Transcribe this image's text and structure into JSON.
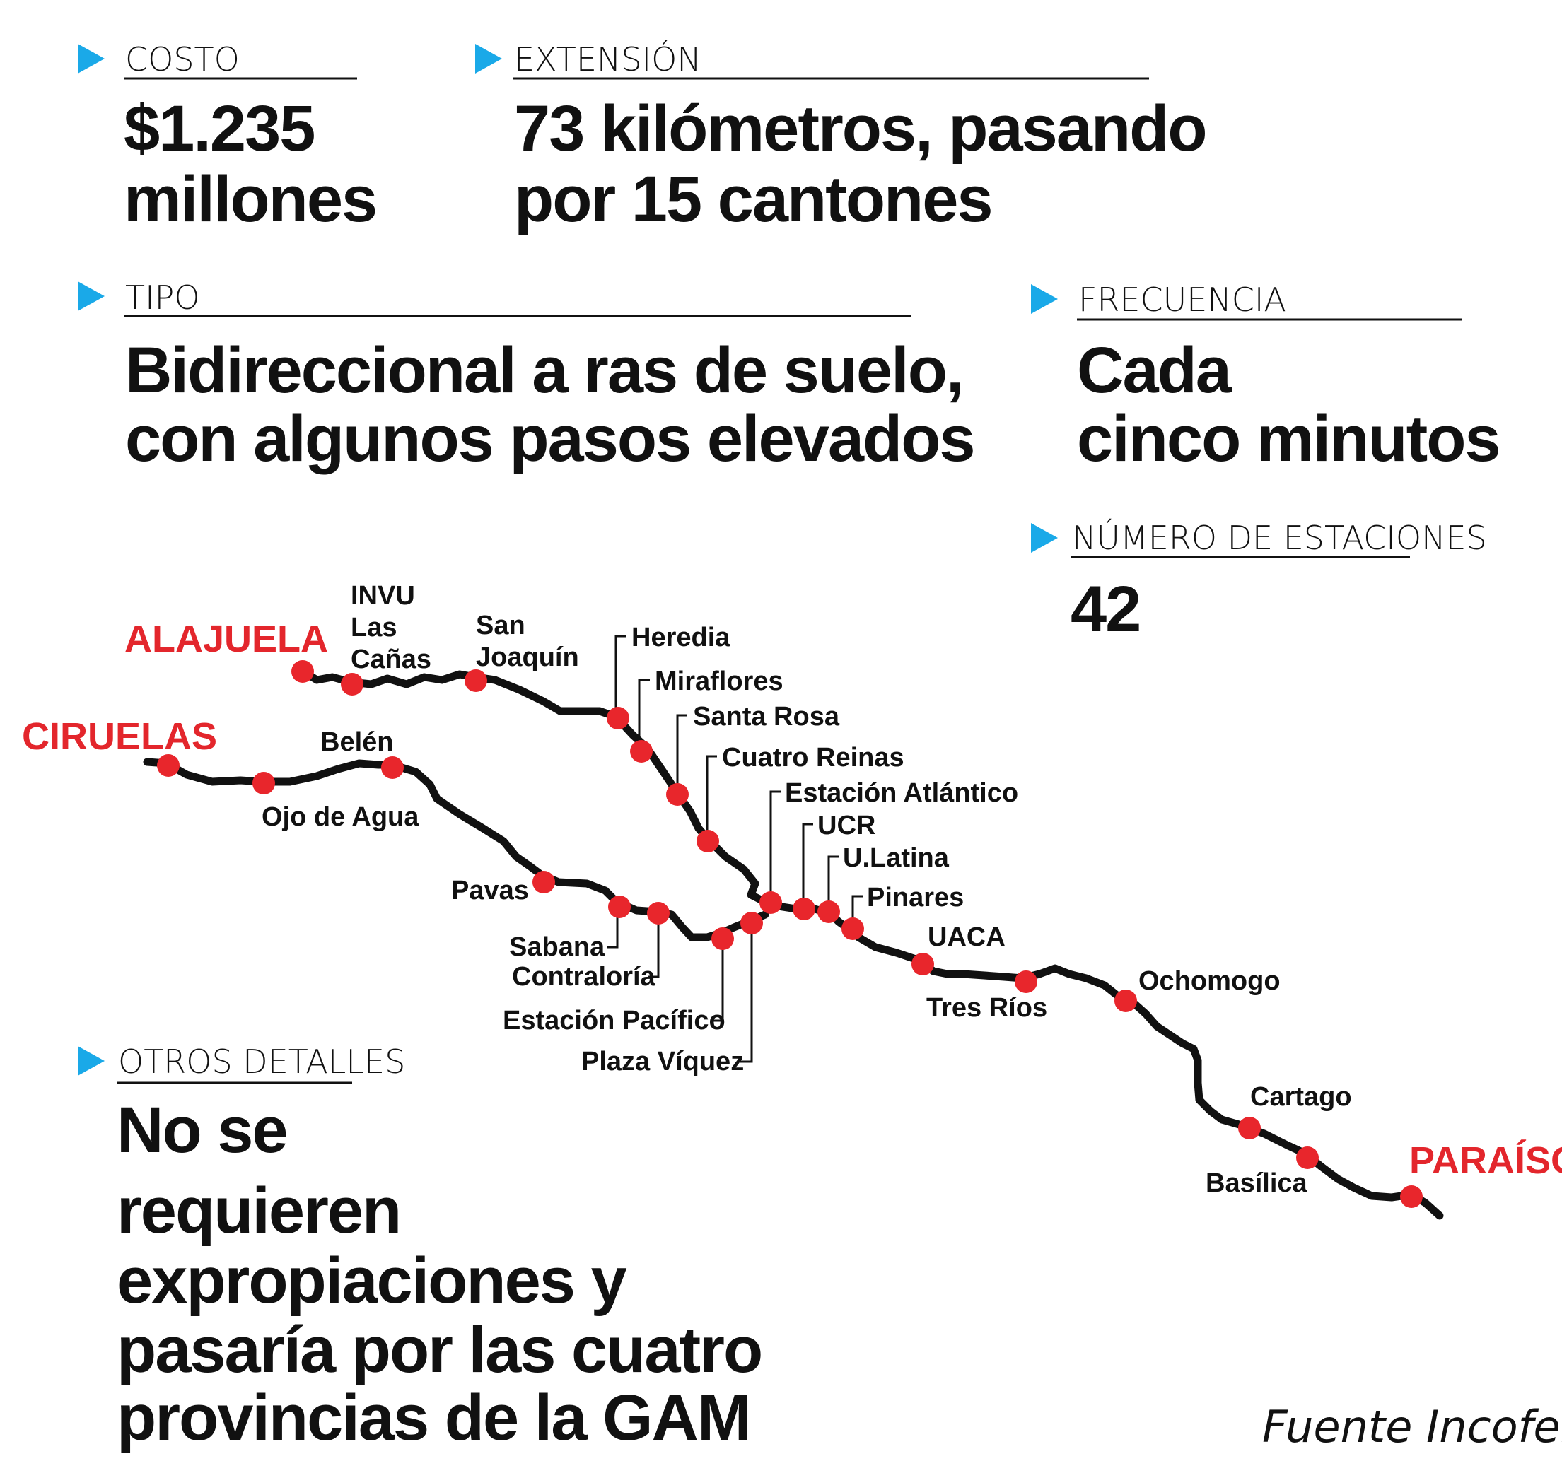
{
  "blocks": {
    "costo": {
      "title": "COSTO",
      "lines": [
        "$1.235",
        "millones"
      ]
    },
    "extension": {
      "title": "EXTENSIÓN",
      "lines": [
        "73 kilómetros, pasando",
        "por 15 cantones"
      ]
    },
    "tipo": {
      "title": "TIPO",
      "lines": [
        "Bidireccional a ras de suelo,",
        "con algunos pasos elevados"
      ]
    },
    "frecuencia": {
      "title": "FRECUENCIA",
      "lines": [
        "Cada",
        "cinco minutos"
      ]
    },
    "estaciones": {
      "title": "NÚMERO DE ESTACIONES",
      "lines": [
        "42"
      ]
    },
    "otros": {
      "title": "OTROS DETALLES",
      "lines": [
        "No se",
        "requieren",
        "expropiaciones y",
        "pasaría por las cuatro",
        "provincias de la GAM"
      ]
    }
  },
  "map": {
    "terminals": {
      "alajuela": "ALAJUELA",
      "ciruelas": "CIRUELAS",
      "paraiso": "PARAÍSO"
    },
    "stations": {
      "invu": [
        "INVU",
        "Las",
        "Cañas"
      ],
      "san_joaquin": [
        "San",
        "Joaquín"
      ],
      "heredia": "Heredia",
      "miraflores": "Miraflores",
      "santa_rosa": "Santa Rosa",
      "cuatro_reinas": "Cuatro Reinas",
      "estacion_atlantico": "Estación Atlántico",
      "ucr": "UCR",
      "u_latina": "U.Latina",
      "pinares": "Pinares",
      "uaca": "UACA",
      "tres_rios": "Tres Ríos",
      "ochomogo": "Ochomogo",
      "cartago": "Cartago",
      "basilica": "Basílica",
      "belen": "Belén",
      "ojo_de_agua": "Ojo de Agua",
      "pavas": "Pavas",
      "sabana": "Sabana",
      "contraloria": "Contraloría",
      "estacion_pacifico": "Estación Pacífico",
      "plaza_viquez": "Plaza Víquez"
    }
  },
  "source": "Fuente Incofer"
}
